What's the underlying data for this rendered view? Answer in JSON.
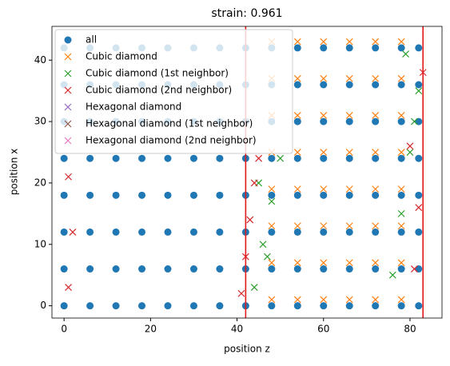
{
  "chart_data": {
    "type": "scatter",
    "title": "strain: 0.961",
    "xlabel": "position z",
    "ylabel": "position x",
    "xlim": [
      -2.8,
      87.4
    ],
    "ylim": [
      -2,
      45.5
    ],
    "xticks": [
      0,
      20,
      40,
      60,
      80
    ],
    "yticks": [
      0,
      10,
      20,
      30,
      40
    ],
    "legend": "upper left",
    "vlines": [
      42,
      83
    ],
    "vline_color": "#e31a1c",
    "series": [
      {
        "name": "all",
        "color": "#1f77b4",
        "marker": "o",
        "x": [
          0,
          6,
          12,
          18,
          24,
          30,
          36,
          42,
          48,
          54,
          60,
          66,
          72,
          78,
          82,
          0,
          6,
          12,
          18,
          24,
          30,
          36,
          42,
          48,
          54,
          60,
          66,
          72,
          78,
          82,
          0,
          6,
          12,
          18,
          24,
          30,
          36,
          42,
          48,
          54,
          60,
          66,
          72,
          78,
          82,
          0,
          6,
          12,
          18,
          24,
          30,
          36,
          42,
          48,
          54,
          60,
          66,
          72,
          78,
          82,
          0,
          6,
          12,
          18,
          24,
          30,
          36,
          42,
          48,
          54,
          60,
          66,
          72,
          78,
          82,
          0,
          6,
          12,
          18,
          24,
          30,
          36,
          42,
          48,
          54,
          60,
          66,
          72,
          78,
          82,
          0,
          6,
          12,
          18,
          24,
          30,
          36,
          42,
          48,
          54,
          60,
          66,
          72,
          78,
          82,
          0,
          6,
          12,
          18,
          24,
          30,
          36,
          42,
          48,
          54,
          60,
          66,
          72,
          78,
          82
        ],
        "y": [
          0,
          0,
          0,
          0,
          0,
          0,
          0,
          0,
          0,
          0,
          0,
          0,
          0,
          0,
          0,
          6,
          6,
          6,
          6,
          6,
          6,
          6,
          6,
          6,
          6,
          6,
          6,
          6,
          6,
          6,
          12,
          12,
          12,
          12,
          12,
          12,
          12,
          12,
          12,
          12,
          12,
          12,
          12,
          12,
          12,
          18,
          18,
          18,
          18,
          18,
          18,
          18,
          18,
          18,
          18,
          18,
          18,
          18,
          18,
          18,
          24,
          24,
          24,
          24,
          24,
          24,
          24,
          24,
          24,
          24,
          24,
          24,
          24,
          24,
          24,
          30,
          30,
          30,
          30,
          30,
          30,
          30,
          30,
          30,
          30,
          30,
          30,
          30,
          30,
          30,
          36,
          36,
          36,
          36,
          36,
          36,
          36,
          36,
          36,
          36,
          36,
          36,
          36,
          36,
          36,
          42,
          42,
          42,
          42,
          42,
          42,
          42,
          42,
          42,
          42,
          42,
          42,
          42,
          42,
          42
        ]
      },
      {
        "name": "Cubic diamond",
        "color": "#ff7f0e",
        "marker": "x",
        "x": [
          48,
          54,
          60,
          66,
          72,
          78,
          48,
          54,
          60,
          66,
          72,
          78,
          48,
          54,
          60,
          66,
          72,
          78,
          48,
          54,
          60,
          66,
          72,
          78,
          48,
          54,
          60,
          66,
          72,
          78,
          48,
          54,
          60,
          66,
          72,
          78,
          48,
          54,
          60,
          66,
          72,
          78,
          48,
          54,
          60,
          66,
          72,
          78
        ],
        "y": [
          1,
          1,
          1,
          1,
          1,
          1,
          7,
          7,
          7,
          7,
          7,
          7,
          13,
          13,
          13,
          13,
          13,
          13,
          19,
          19,
          19,
          19,
          19,
          19,
          25,
          25,
          25,
          25,
          25,
          25,
          31,
          31,
          31,
          31,
          31,
          31,
          37,
          37,
          37,
          37,
          37,
          37,
          43,
          43,
          43,
          43,
          43,
          43
        ]
      },
      {
        "name": "Cubic diamond (1st neighbor)",
        "color": "#2ca02c",
        "marker": "x",
        "x": [
          44,
          46,
          48,
          50,
          76,
          78,
          80,
          82,
          45,
          79,
          47,
          81
        ],
        "y": [
          3,
          10,
          17,
          24,
          5,
          15,
          25,
          35,
          20,
          41,
          8,
          30
        ]
      },
      {
        "name": "Cubic diamond (2nd neighbor)",
        "color": "#d62728",
        "marker": "x",
        "x": [
          41,
          42,
          43,
          44,
          45,
          1,
          2,
          1,
          81,
          82,
          80,
          83
        ],
        "y": [
          2,
          8,
          14,
          20,
          24,
          3,
          12,
          21,
          6,
          16,
          26,
          38
        ]
      },
      {
        "name": "Hexagonal diamond",
        "color": "#9467bd",
        "marker": "x",
        "x": [],
        "y": []
      },
      {
        "name": "Hexagonal diamond (1st neighbor)",
        "color": "#8c564b",
        "marker": "x",
        "x": [],
        "y": []
      },
      {
        "name": "Hexagonal diamond (2nd neighbor)",
        "color": "#e377c2",
        "marker": "x",
        "x": [],
        "y": []
      }
    ]
  }
}
